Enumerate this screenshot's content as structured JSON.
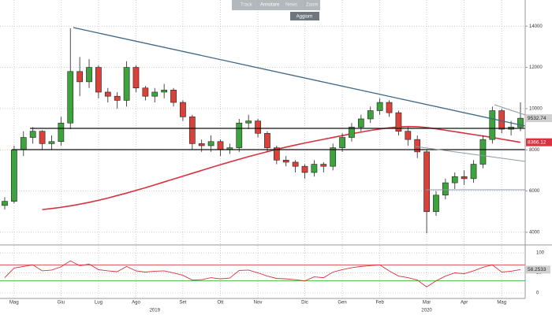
{
  "toolbar": {
    "items": [
      "Track",
      "Annotare",
      "News",
      "Zoom"
    ],
    "button": "Aggiorn"
  },
  "chart_data": [
    {
      "type": "candlestick",
      "categories": [
        null,
        "Mag",
        null,
        null,
        null,
        null,
        "Giu",
        null,
        null,
        null,
        "Lug",
        null,
        null,
        null,
        "Ago",
        null,
        null,
        null,
        null,
        "Set",
        null,
        null,
        null,
        "Ott",
        null,
        null,
        null,
        "Nov",
        null,
        null,
        null,
        null,
        "Dic",
        null,
        null,
        null,
        "Gen",
        null,
        null,
        null,
        "Feb",
        null,
        null,
        null,
        null,
        "Mar",
        null,
        null,
        null,
        "Apr",
        null,
        null,
        null,
        "Mag",
        null,
        null
      ],
      "years": [
        null,
        null,
        null,
        null,
        null,
        null,
        null,
        null,
        null,
        null,
        null,
        null,
        null,
        null,
        null,
        null,
        "2019",
        null,
        null,
        null,
        null,
        null,
        null,
        null,
        null,
        null,
        null,
        null,
        null,
        null,
        null,
        null,
        null,
        null,
        null,
        null,
        null,
        null,
        null,
        null,
        null,
        null,
        null,
        null,
        null,
        "2020",
        null,
        null,
        null,
        null,
        null,
        null,
        null,
        null,
        null,
        null
      ],
      "open": [
        5300,
        5500,
        8000,
        8600,
        8900,
        8300,
        8400,
        9300,
        11800,
        11300,
        12000,
        10800,
        10600,
        10400,
        12000,
        11000,
        10600,
        10800,
        10900,
        10300,
        9600,
        8300,
        8200,
        8400,
        8000,
        8100,
        9300,
        9400,
        8800,
        8100,
        7500,
        7400,
        7200,
        6900,
        7300,
        7200,
        8100,
        8600,
        9100,
        9500,
        9900,
        10300,
        9800,
        8900,
        8500,
        7900,
        5000,
        5800,
        6400,
        6700,
        6600,
        7300,
        8500,
        9900,
        9000,
        9100
      ],
      "high": [
        5700,
        8200,
        8900,
        9100,
        8950,
        8700,
        9600,
        13900,
        12500,
        12400,
        12100,
        11000,
        10800,
        12300,
        12100,
        11100,
        11000,
        11200,
        11000,
        10400,
        9700,
        8500,
        8700,
        8500,
        8300,
        9500,
        9700,
        9500,
        8900,
        8200,
        7700,
        7500,
        7300,
        7500,
        7400,
        8300,
        8800,
        9300,
        9700,
        10100,
        10500,
        10400,
        9900,
        9100,
        8700,
        8000,
        6000,
        6600,
        6900,
        7000,
        7500,
        8700,
        10100,
        10000,
        9400,
        10300
      ],
      "low": [
        5100,
        5400,
        7700,
        8300,
        8000,
        8000,
        8200,
        9000,
        10600,
        11000,
        10500,
        10300,
        10000,
        10100,
        10800,
        10400,
        10300,
        10500,
        10100,
        9400,
        8000,
        7900,
        7900,
        7700,
        7800,
        7900,
        9000,
        8600,
        7900,
        7300,
        7200,
        6900,
        6600,
        6700,
        6900,
        7000,
        7900,
        8400,
        8900,
        9300,
        9700,
        9600,
        8700,
        8200,
        7600,
        3950,
        4800,
        5600,
        6100,
        6300,
        6400,
        7100,
        8300,
        8800,
        8700,
        8900
      ],
      "close": [
        5500,
        8000,
        8600,
        8900,
        8300,
        8400,
        9300,
        11800,
        11300,
        12000,
        10800,
        10600,
        10400,
        12000,
        11000,
        10600,
        10800,
        10900,
        10300,
        9600,
        8300,
        8200,
        8400,
        8000,
        8100,
        9300,
        9400,
        8800,
        8100,
        7500,
        7400,
        7200,
        6900,
        7300,
        7200,
        8100,
        8600,
        9100,
        9500,
        9900,
        10300,
        9800,
        8900,
        8500,
        7900,
        5000,
        5800,
        6400,
        6700,
        6600,
        7300,
        8500,
        9900,
        9000,
        9100,
        9532.74
      ],
      "up_color": "#3da33d",
      "down_color": "#d9413a",
      "ylim": [
        3385,
        15270
      ],
      "yticks": [
        4000,
        6000,
        8000,
        10000,
        12000,
        14000
      ],
      "grid": true,
      "moving_average": {
        "color": "#d8313f",
        "values": [
          null,
          null,
          null,
          null,
          5100,
          5150,
          5210,
          5280,
          5360,
          5450,
          5550,
          5660,
          5780,
          5900,
          6030,
          6160,
          6300,
          6440,
          6580,
          6720,
          6860,
          7000,
          7140,
          7280,
          7410,
          7540,
          7670,
          7790,
          7910,
          8020,
          8130,
          8230,
          8330,
          8420,
          8510,
          8600,
          8690,
          8780,
          8860,
          8940,
          9010,
          9070,
          9110,
          9130,
          9120,
          9080,
          9020,
          8950,
          8880,
          8810,
          8740,
          8670,
          8600,
          8520,
          8440,
          8366.12
        ]
      }
    },
    {
      "type": "line",
      "color": "#d8313f",
      "values": [
        38,
        62,
        66,
        70,
        55,
        57,
        65,
        80,
        68,
        72,
        58,
        55,
        53,
        66,
        55,
        52,
        54,
        55,
        50,
        44,
        32,
        33,
        38,
        35,
        37,
        56,
        57,
        50,
        42,
        36,
        35,
        33,
        30,
        40,
        38,
        52,
        58,
        63,
        66,
        68,
        70,
        55,
        42,
        38,
        32,
        15,
        30,
        42,
        50,
        48,
        55,
        64,
        70,
        52,
        54,
        58.2533
      ],
      "ylim": [
        -10,
        112
      ],
      "yticks": [
        0,
        50,
        100
      ],
      "grid": true,
      "levels": [
        {
          "value": 70,
          "color": "#d9534f"
        },
        {
          "value": 30,
          "color": "#4cb84c"
        }
      ]
    }
  ]
}
